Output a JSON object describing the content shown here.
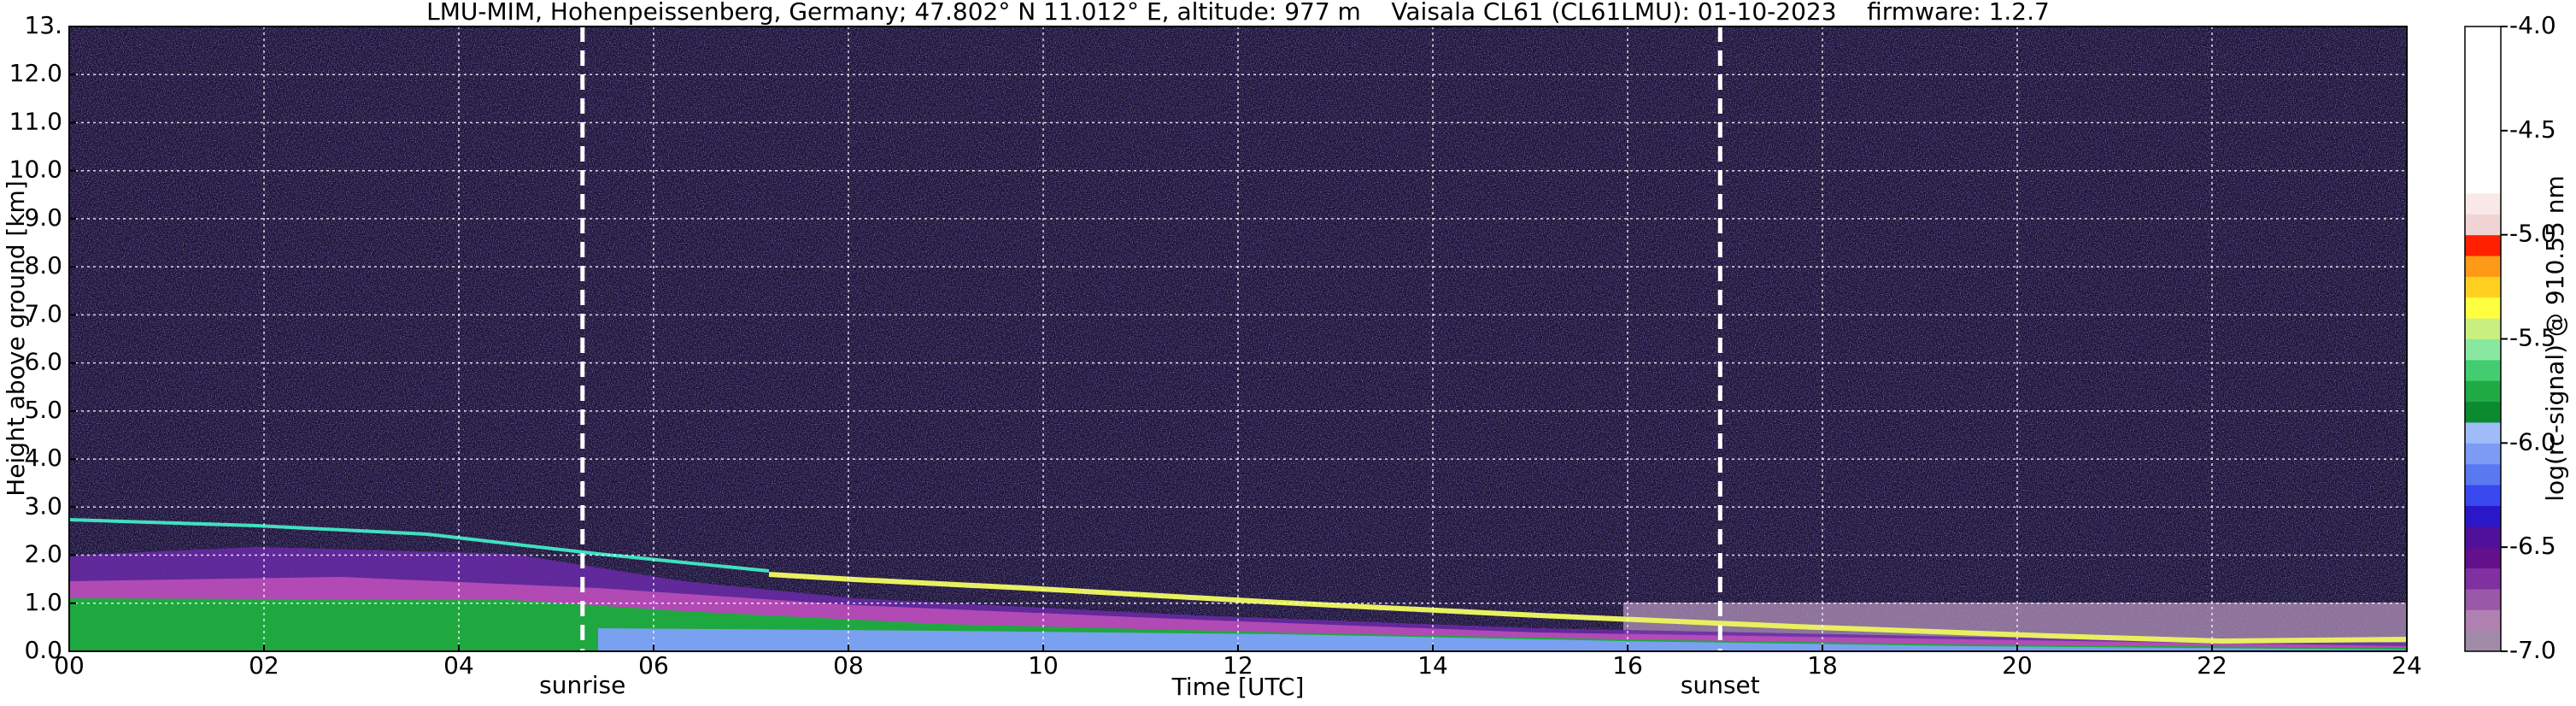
{
  "chart_data": {
    "type": "heatmap",
    "title": "LMU-MIM, Hohenpeissenberg, Germany; 47.802° N 11.012° E, altitude: 977 m    Vaisala CL61 (CL61LMU): 01-10-2023    firmware: 1.2.7",
    "x_label": "Time [UTC]",
    "y_label": "Height above ground [km]",
    "xlim": [
      0,
      24
    ],
    "xticks": [
      {
        "value": 0,
        "label": "00"
      },
      {
        "value": 2,
        "label": "02"
      },
      {
        "value": 4,
        "label": "04"
      },
      {
        "value": 6,
        "label": "06"
      },
      {
        "value": 8,
        "label": "08"
      },
      10,
      12,
      14,
      16,
      18,
      20,
      22,
      24
    ],
    "ylim": [
      0,
      13
    ],
    "yticks": [
      {
        "value": 0,
        "label": "0.0"
      },
      {
        "value": 1,
        "label": "1.0"
      },
      {
        "value": 2,
        "label": "2.0"
      },
      {
        "value": 3,
        "label": "3.0"
      },
      {
        "value": 4,
        "label": "4.0"
      },
      {
        "value": 5,
        "label": "5.0"
      },
      {
        "value": 6,
        "label": "6.0"
      },
      {
        "value": 7,
        "label": "7.0"
      },
      {
        "value": 8,
        "label": "8.0"
      },
      {
        "value": 9,
        "label": "9.0"
      },
      {
        "value": 10,
        "label": "10.0"
      },
      {
        "value": 11,
        "label": "11.0"
      },
      {
        "value": 12,
        "label": "12.0"
      },
      {
        "value": 13,
        "label": "13."
      }
    ],
    "grid": true,
    "events": [
      {
        "label": "sunrise",
        "x": 5.27
      },
      {
        "label": "sunset",
        "x": 16.95
      }
    ],
    "colorbar": {
      "label": "log(rc-signal) @ 910.55 nm",
      "lim": [
        -7,
        -4
      ],
      "ticks": [
        {
          "value": -4,
          "label": "-4.0"
        },
        {
          "value": -4.5,
          "label": "-4.5"
        },
        {
          "value": -5,
          "label": "-5.0"
        },
        {
          "value": -5.5,
          "label": "-5.5"
        },
        {
          "value": -6,
          "label": "-6.0"
        },
        {
          "value": -6.5,
          "label": "-6.5"
        },
        {
          "value": -7,
          "label": "-7.0"
        }
      ],
      "colors": [
        "#a08ca8",
        "#b080b0",
        "#9a58a8",
        "#8030a0",
        "#64108c",
        "#50109a",
        "#2a18c8",
        "#3a48f0",
        "#5a78f0",
        "#7c9cf4",
        "#a0bcf8",
        "#0c8a30",
        "#20aa44",
        "#44cc70",
        "#88e8a0",
        "#c8f080",
        "#ffff40",
        "#ffd020",
        "#ff9a18",
        "#ff2000",
        "#f0d4d4",
        "#f8e8e8",
        "#ffffff",
        "#ffffff",
        "#ffffff",
        "#ffffff",
        "#ffffff",
        "#ffffff",
        "#ffffff",
        "#ffffff"
      ]
    }
  }
}
